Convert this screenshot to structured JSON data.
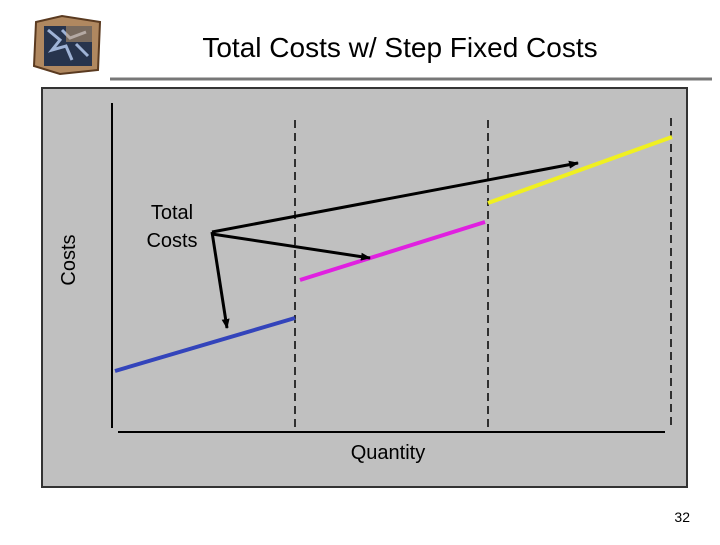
{
  "header": {
    "title": "Total Costs w/ Step Fixed Costs"
  },
  "diagram": {
    "y_axis_label": "Costs",
    "x_axis_label": "Quantity",
    "annotation": [
      "Total",
      "Costs"
    ]
  },
  "footer": {
    "page_number": "32"
  }
}
